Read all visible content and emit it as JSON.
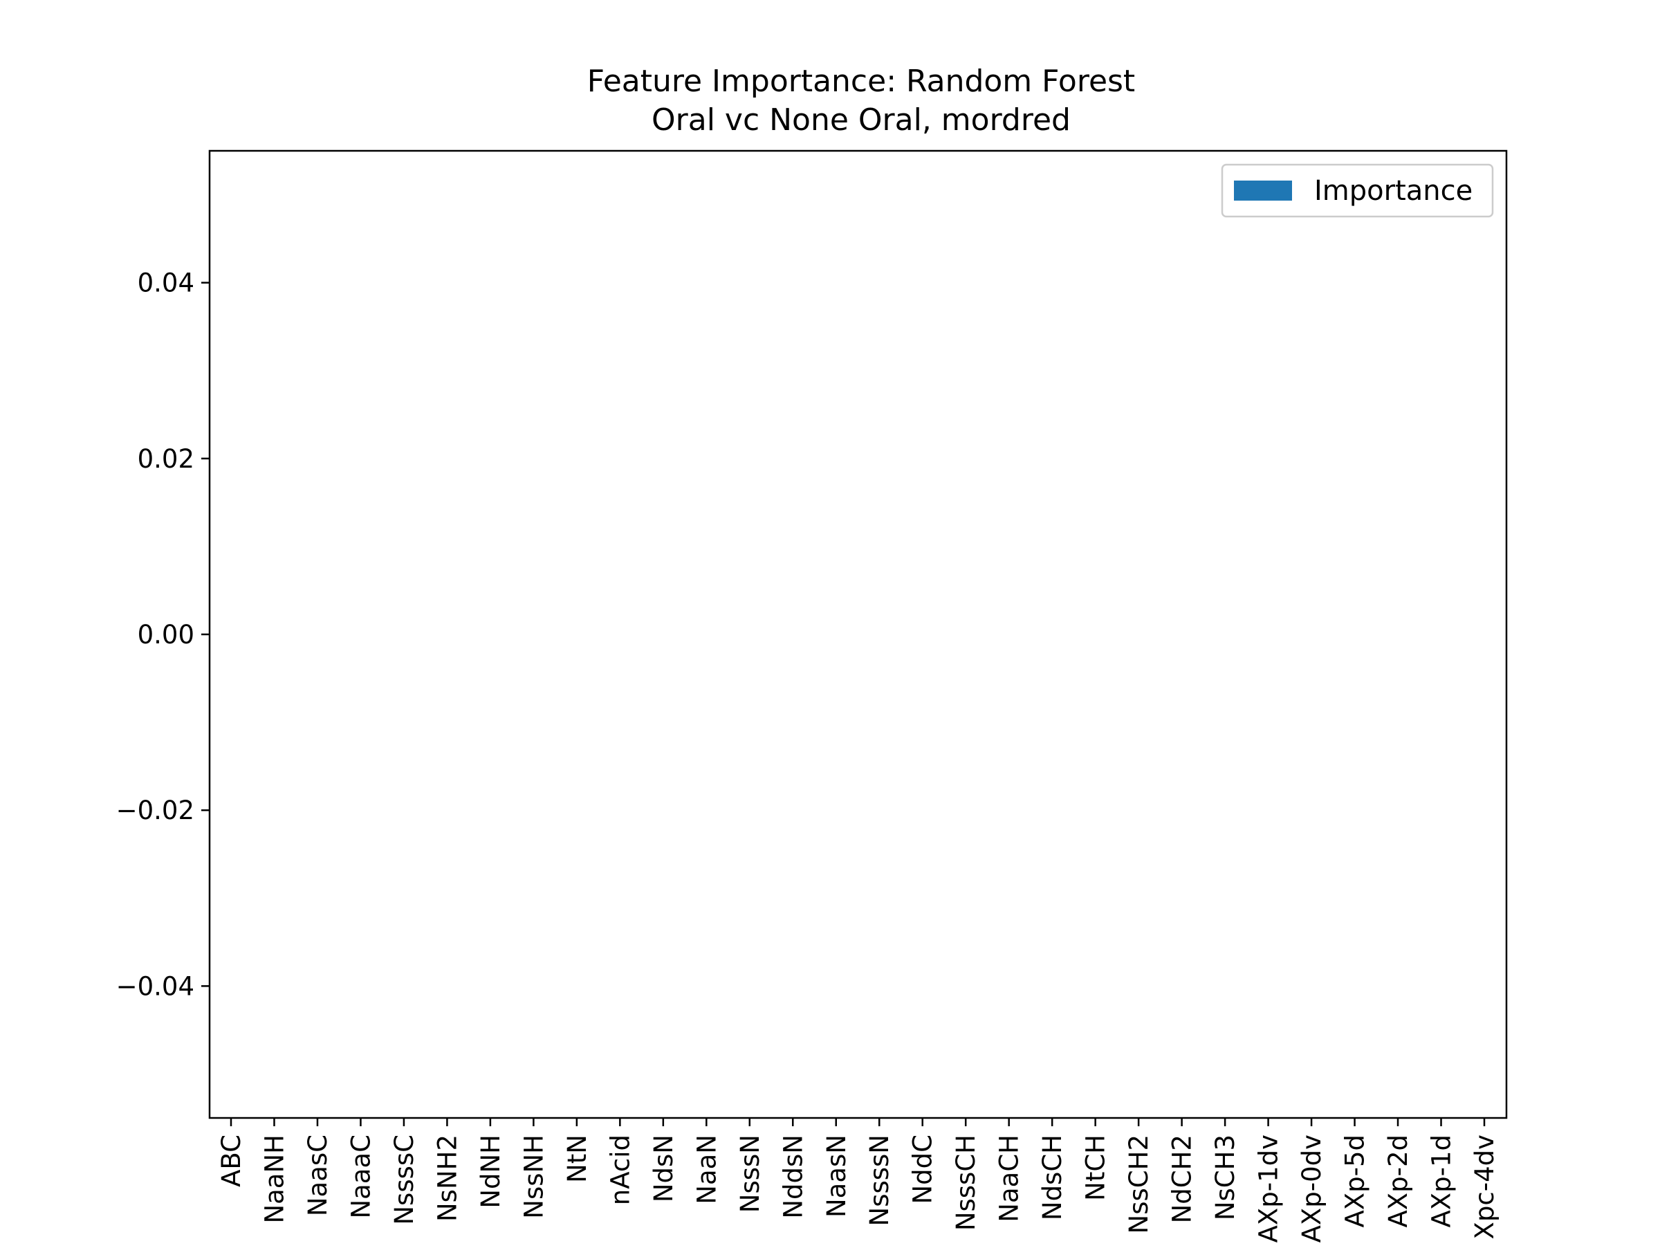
{
  "chart_data": {
    "type": "bar",
    "title": "Feature Importance: Random Forest",
    "subtitle": "Oral vc None Oral, mordred",
    "xlabel": "",
    "ylabel": "",
    "categories": [
      "ABC",
      "NaaNH",
      "NaasC",
      "NaaaC",
      "NssssC",
      "NsNH2",
      "NdNH",
      "NssNH",
      "NtN",
      "nAcid",
      "NdsN",
      "NaaN",
      "NsssN",
      "NddsN",
      "NaasN",
      "NssssN",
      "NddC",
      "NsssCH",
      "NaaCH",
      "NdsCH",
      "NtCH",
      "NssCH2",
      "NdCH2",
      "NsCH3",
      "AXp-1dv",
      "AXp-0dv",
      "AXp-5d",
      "AXp-2d",
      "AXp-1d",
      "Xpc-4dv"
    ],
    "series": [
      {
        "name": "Importance",
        "values": [
          0,
          0,
          0,
          0,
          0,
          0,
          0,
          0,
          0,
          0,
          0,
          0,
          0,
          0,
          0,
          0,
          0,
          0,
          0,
          0,
          0,
          0,
          0,
          0,
          0,
          0,
          0,
          0,
          0,
          0
        ],
        "color": "#1f77b4"
      }
    ],
    "ylim": [
      -0.055,
      0.055
    ],
    "yticks": [
      -0.04,
      -0.02,
      0.0,
      0.02,
      0.04
    ],
    "ytick_labels": [
      "−0.04",
      "−0.02",
      "0.00",
      "0.02",
      "0.04"
    ],
    "grid": false,
    "legend": {
      "position": "top-right",
      "entries": [
        "Importance"
      ]
    }
  }
}
